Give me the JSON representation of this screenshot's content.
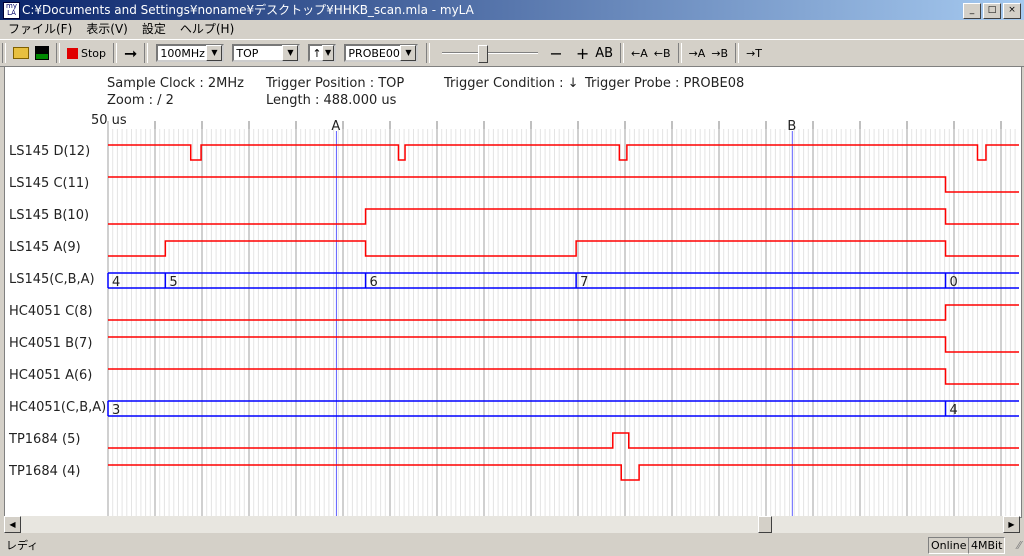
{
  "window": {
    "title": "C:¥Documents and Settings¥noname¥デスクトップ¥HHKB_scan.mla - myLA",
    "icon": "myla-app-icon",
    "minimize": "_",
    "maximize": "□",
    "close": "×"
  },
  "menu": [
    "ファイル(F)",
    "表示(V)",
    "設定",
    "ヘルプ(H)"
  ],
  "toolbar": {
    "stop_label": "Stop",
    "clock": "100MHz",
    "position": "TOP",
    "edge": "↑",
    "probe": "PROBE00",
    "zoom_slider": 0.4,
    "minus": "−",
    "plus": "+",
    "ab": "AB",
    "left_a": "←A",
    "left_b": "←B",
    "right_a": "→A",
    "right_b": "→B",
    "to_t": "→T"
  },
  "info": {
    "sample_clock": "Sample Clock : 2MHz",
    "zoom": "Zoom : /   2",
    "trigger_position": "Trigger Position : TOP",
    "length": "Length : 488.000 us",
    "trigger_condition": "Trigger Condition : ↓",
    "trigger_probe": "Trigger Probe : PROBE08",
    "scale": "50 us"
  },
  "cursors": [
    {
      "label": "A",
      "time_us": 243
    },
    {
      "label": "B",
      "time_us": 728
    }
  ],
  "colors": {
    "signal": "#ff0000",
    "bus": "#0000ff",
    "cursor": "#6060ff"
  },
  "signals": [
    {
      "name": "LS145 D(12)",
      "type": "bit",
      "initial": 1,
      "transitions_us": [
        88,
        99,
        309,
        316,
        544,
        552,
        925,
        934
      ]
    },
    {
      "name": "LS145 C(11)",
      "type": "bit",
      "initial": 1,
      "transitions_us": [
        891
      ]
    },
    {
      "name": "LS145 B(10)",
      "type": "bit",
      "initial": 0,
      "transitions_us": [
        274,
        891
      ]
    },
    {
      "name": "LS145 A(9)",
      "type": "bit",
      "initial": 0,
      "transitions_us": [
        61,
        274,
        498,
        891
      ]
    },
    {
      "name": "LS145(C,B,A)",
      "type": "bus",
      "values": [
        {
          "t": 0,
          "v": "4"
        },
        {
          "t": 61,
          "v": "5"
        },
        {
          "t": 274,
          "v": "6"
        },
        {
          "t": 498,
          "v": "7"
        },
        {
          "t": 891,
          "v": "0"
        }
      ]
    },
    {
      "name": "HC4051 C(8)",
      "type": "bit",
      "initial": 0,
      "transitions_us": [
        891
      ]
    },
    {
      "name": "HC4051 B(7)",
      "type": "bit",
      "initial": 1,
      "transitions_us": [
        891
      ]
    },
    {
      "name": "HC4051 A(6)",
      "type": "bit",
      "initial": 1,
      "transitions_us": [
        891
      ]
    },
    {
      "name": "HC4051(C,B,A)",
      "type": "bus",
      "values": [
        {
          "t": 0,
          "v": "3"
        },
        {
          "t": 891,
          "v": "4"
        }
      ]
    },
    {
      "name": "TP1684 (5)",
      "type": "bit",
      "initial": 0,
      "transitions_us": [
        537,
        554
      ]
    },
    {
      "name": "TP1684 (4)",
      "type": "bit",
      "initial": 1,
      "transitions_us": [
        546,
        565
      ]
    }
  ],
  "scroll": {
    "position": 0.76
  },
  "status": {
    "text": "レディ",
    "online": "Online",
    "memory": "4MBit"
  }
}
